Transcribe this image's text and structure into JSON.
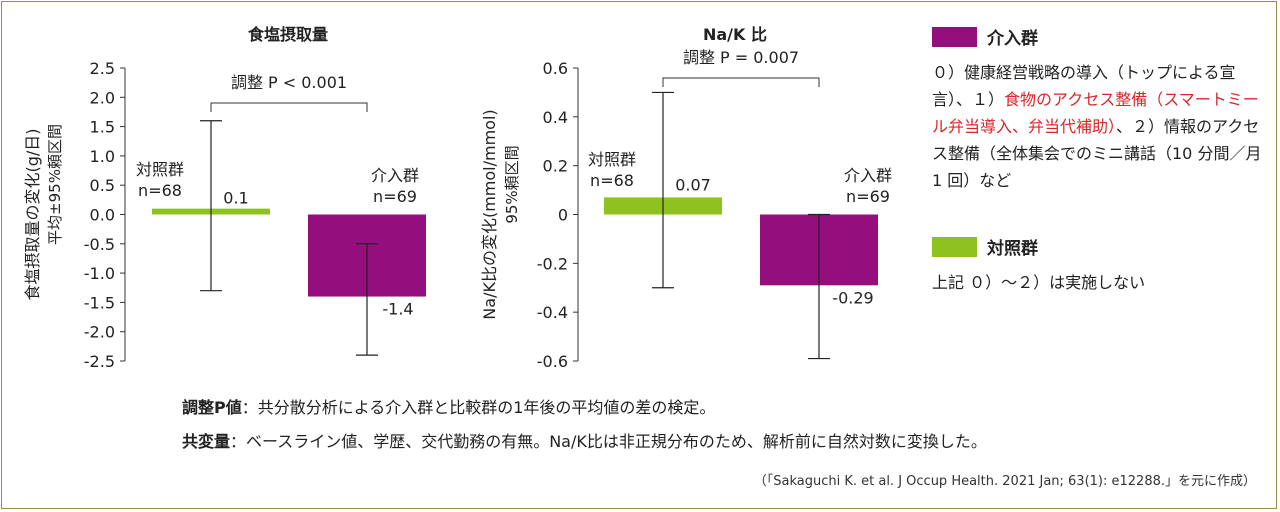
{
  "colors": {
    "intervention": "#940e7e",
    "control": "#8dc21f",
    "frame": "#9a8a55"
  },
  "chart_data": [
    {
      "type": "bar",
      "title": "食塩摂取量",
      "ylabel": "食塩摂取量の変化(g/日)",
      "ylabel2": "平均±95%頼区間",
      "ylim": [
        -2.5,
        2.5
      ],
      "yticks": [
        2.5,
        2.0,
        1.5,
        1.0,
        0.5,
        0.0,
        -0.5,
        -1.0,
        -1.5,
        -2.0,
        -2.5
      ],
      "ytick_labels": [
        "2.5",
        "2.0",
        "1.5",
        "1.0",
        "0.5",
        "0.0",
        "-0.5",
        "-1.0",
        "-1.5",
        "-2.0",
        "-2.5"
      ],
      "categories": [
        "対照群",
        "介入群"
      ],
      "group_n": [
        "n=68",
        "n=69"
      ],
      "values": [
        0.1,
        -1.4
      ],
      "value_labels": [
        "0.1",
        "-1.4"
      ],
      "ci_low": [
        -1.3,
        -2.4
      ],
      "ci_high": [
        1.6,
        -0.5
      ],
      "annotation": "調整 P < 0.001"
    },
    {
      "type": "bar",
      "title": "Na/K 比",
      "ylabel": "Na/K比の変化(mmol/mmol)",
      "ylabel2": "95%頼区間",
      "ylim": [
        -0.6,
        0.6
      ],
      "yticks": [
        0.6,
        0.4,
        0.2,
        0.0,
        -0.2,
        -0.4,
        -0.6
      ],
      "ytick_labels": [
        "0.6",
        "0.4",
        "0.2",
        "0",
        "-0.2",
        "-0.4",
        "-0.6"
      ],
      "categories": [
        "対照群",
        "介入群"
      ],
      "group_n": [
        "n=68",
        "n=69"
      ],
      "values": [
        0.07,
        -0.29
      ],
      "value_labels": [
        "0.07",
        "-0.29"
      ],
      "ci_low": [
        -0.3,
        -0.59
      ],
      "ci_high": [
        0.5,
        0.0
      ],
      "annotation": "調整 P = 0.007"
    }
  ],
  "legend": {
    "intervention_label": "介入群",
    "intervention_desc_1": "０）健康経営戦略の導入（トップによる宣言）、１）",
    "intervention_desc_highlight": "食物のアクセス整備（スマートミール弁当導入、弁当代補助）",
    "intervention_desc_2": "、２）情報のアクセス整備（全体集会でのミニ講話（10 分間／月 1 回）など",
    "control_label": "対照群",
    "control_desc": "上記 ０）～２）は実施しない"
  },
  "notes": {
    "note1_label": "調整P値",
    "note1_text": "：共分散分析による介入群と比較群の1年後の平均値の差の検定。",
    "note2_label": "共変量",
    "note2_text": "：ベースライン値、学歴、交代勤務の有無。Na/K比は非正規分布のため、解析前に自然対数に変換した。"
  },
  "source": "（「Sakaguchi K. et al. J Occup Health. 2021 Jan; 63(1): e12288.」を元に作成）"
}
